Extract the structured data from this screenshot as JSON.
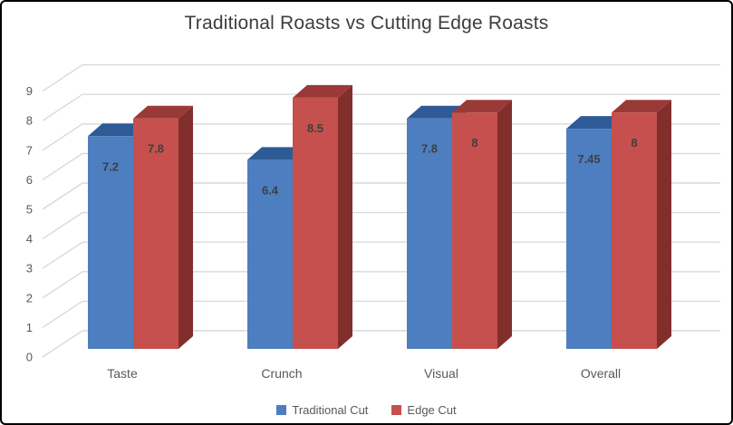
{
  "chart_data": {
    "type": "bar",
    "subtype": "3d-clustered-column",
    "title": "Traditional Roasts vs Cutting Edge Roasts",
    "categories": [
      "Taste",
      "Crunch",
      "Visual",
      "Overall"
    ],
    "series": [
      {
        "name": "Traditional Cut",
        "values": [
          7.2,
          6.4,
          7.8,
          7.45
        ],
        "labels": [
          "7.2",
          "6.4",
          "7.8",
          "7.45"
        ],
        "color_front": "#4d7ec0",
        "color_top": "#2e5a96",
        "color_side": "#2d5488"
      },
      {
        "name": "Edge Cut",
        "values": [
          7.8,
          8.5,
          8,
          8
        ],
        "labels": [
          "7.8",
          "8.5",
          "8",
          "8"
        ],
        "color_front": "#c5504d",
        "color_top": "#993a38",
        "color_side": "#822e2c"
      }
    ],
    "y_axis": {
      "min": 0,
      "max": 9,
      "step": 1,
      "tick_labels": [
        "0",
        "1",
        "2",
        "3",
        "4",
        "5",
        "6",
        "7",
        "8",
        "9"
      ]
    },
    "grid": true,
    "legend_position": "bottom",
    "colors": {
      "gridline": "#d9d9d9",
      "axis_text": "#595959",
      "title_text": "#3d3d3d",
      "data_label_text": "#3f3f3f"
    }
  }
}
